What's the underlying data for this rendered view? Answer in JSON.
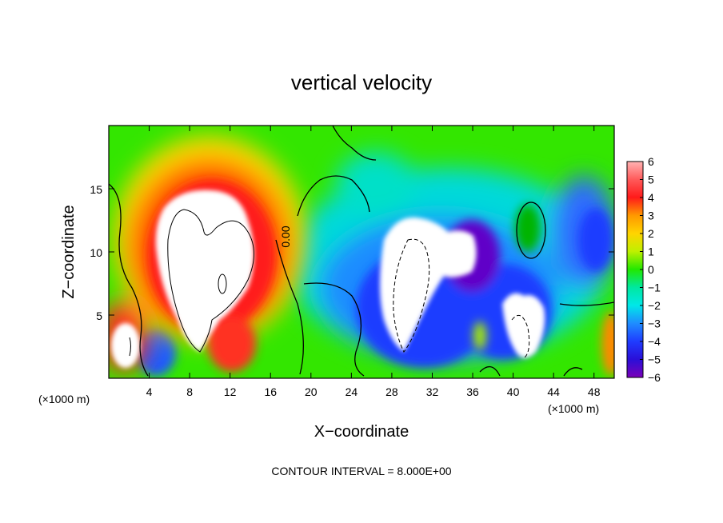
{
  "chart_data": {
    "type": "heatmap",
    "title": "vertical velocity",
    "xlabel": "X−coordinate",
    "ylabel": "Z−coordinate",
    "x_unit_left": "(×1000 m)",
    "x_unit_right": "(×1000 m)",
    "xlim": [
      0,
      50
    ],
    "ylim": [
      0,
      20
    ],
    "x_ticks": [
      "4",
      "8",
      "12",
      "16",
      "20",
      "24",
      "28",
      "32",
      "36",
      "40",
      "44",
      "48"
    ],
    "y_ticks": [
      "5",
      "10",
      "15"
    ],
    "contour_label": "0.00",
    "footnote": "CONTOUR INTERVAL = 8.000E+00",
    "colorbar": {
      "labels": [
        "6",
        "5",
        "4",
        "3",
        "2",
        "1",
        "0",
        "−1",
        "−2",
        "−3",
        "−4",
        "−5",
        "−6"
      ],
      "range": [
        -6,
        6
      ]
    },
    "features": [
      {
        "name": "updraft",
        "x": 9,
        "z": 9,
        "value": 6
      },
      {
        "name": "downdraft",
        "x": 32,
        "z": 8,
        "value": -6
      },
      {
        "name": "downdraft",
        "x": 42,
        "z": 4,
        "value": -6
      },
      {
        "name": "weak updraft",
        "x": 41,
        "z": 12,
        "value": 1
      }
    ]
  }
}
